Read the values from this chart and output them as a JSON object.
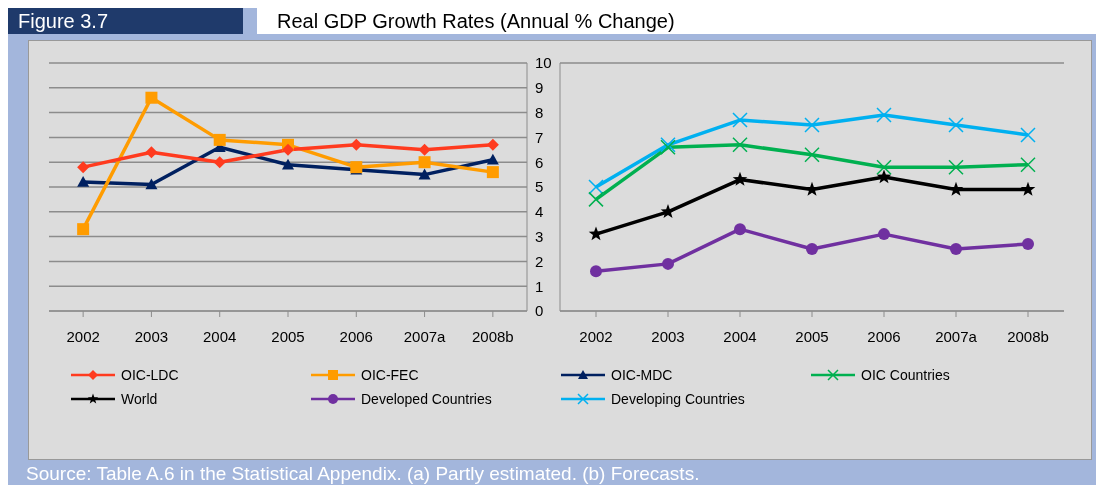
{
  "chart_data": [
    {
      "type": "line",
      "title": "Real GDP Growth Rates (Annual % Change)",
      "subtitle": "Figure 3.7",
      "categories": [
        "2002",
        "2003",
        "2004",
        "2005",
        "2006",
        "2007a",
        "2008b"
      ],
      "series": [
        {
          "name": "OIC-LDC",
          "color": "#ff3b1f",
          "marker": "diamond",
          "values": [
            5.8,
            6.4,
            6.0,
            6.5,
            6.7,
            6.5,
            6.7
          ]
        },
        {
          "name": "OIC-FEC",
          "color": "#ff9c00",
          "marker": "square",
          "values": [
            3.3,
            8.6,
            6.9,
            6.7,
            5.8,
            6.0,
            5.6
          ]
        },
        {
          "name": "OIC-MDC",
          "color": "#002060",
          "marker": "triangle",
          "values": [
            5.2,
            5.1,
            6.6,
            5.9,
            5.7,
            5.5,
            6.1
          ]
        }
      ],
      "ylim": [
        0,
        10
      ],
      "yticks": [
        0,
        1,
        2,
        3,
        4,
        5,
        6,
        7,
        8,
        9,
        10
      ],
      "grid": "y",
      "legend": "bottom"
    },
    {
      "type": "line",
      "categories": [
        "2002",
        "2003",
        "2004",
        "2005",
        "2006",
        "2007a",
        "2008b"
      ],
      "series": [
        {
          "name": "OIC Countries",
          "color": "#00b050",
          "marker": "cross",
          "values": [
            4.5,
            6.6,
            6.7,
            6.3,
            5.8,
            5.8,
            5.9
          ]
        },
        {
          "name": "World",
          "color": "#000000",
          "marker": "star",
          "values": [
            3.1,
            4.0,
            5.3,
            4.9,
            5.4,
            4.9,
            4.9
          ]
        },
        {
          "name": "Developed Countries",
          "color": "#7030a0",
          "marker": "circle",
          "values": [
            1.6,
            1.9,
            3.3,
            2.5,
            3.1,
            2.5,
            2.7
          ]
        },
        {
          "name": "Developing Countries",
          "color": "#00b0f0",
          "marker": "cross",
          "values": [
            5.0,
            6.7,
            7.7,
            7.5,
            7.9,
            7.5,
            7.1
          ]
        }
      ],
      "ylim": [
        0,
        10
      ],
      "yticks": [
        0,
        1,
        2,
        3,
        4,
        5,
        6,
        7,
        8,
        9,
        10
      ],
      "grid": "y",
      "legend": "bottom",
      "tick_labels": "x",
      "annotations": [
        "Source: Table A.6 in the Statistical Appendix. (a) Partly estimated. (b) Forecasts."
      ]
    }
  ]
}
